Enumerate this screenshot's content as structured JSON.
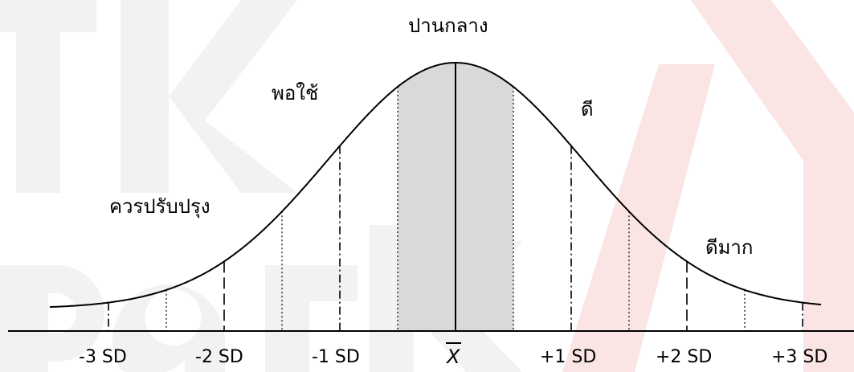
{
  "regions": {
    "center": "ปานกลาง",
    "fair": "พอใช้",
    "good": "ดี",
    "improve": "ควรปรับปรุง",
    "very_good": "ดีมาก"
  },
  "axis_labels": {
    "minus3": "-3 SD",
    "minus2": "-2 SD",
    "minus1": "-1 SD",
    "mean": "X",
    "plus1": "+1 SD",
    "plus2": "+2 SD",
    "plus3": "+3 SD"
  },
  "colors": {
    "shade": "#d9d9d9",
    "line": "#000000",
    "watermark_gray": "#f2f2f2",
    "watermark_red": "#fbe4e4"
  }
}
